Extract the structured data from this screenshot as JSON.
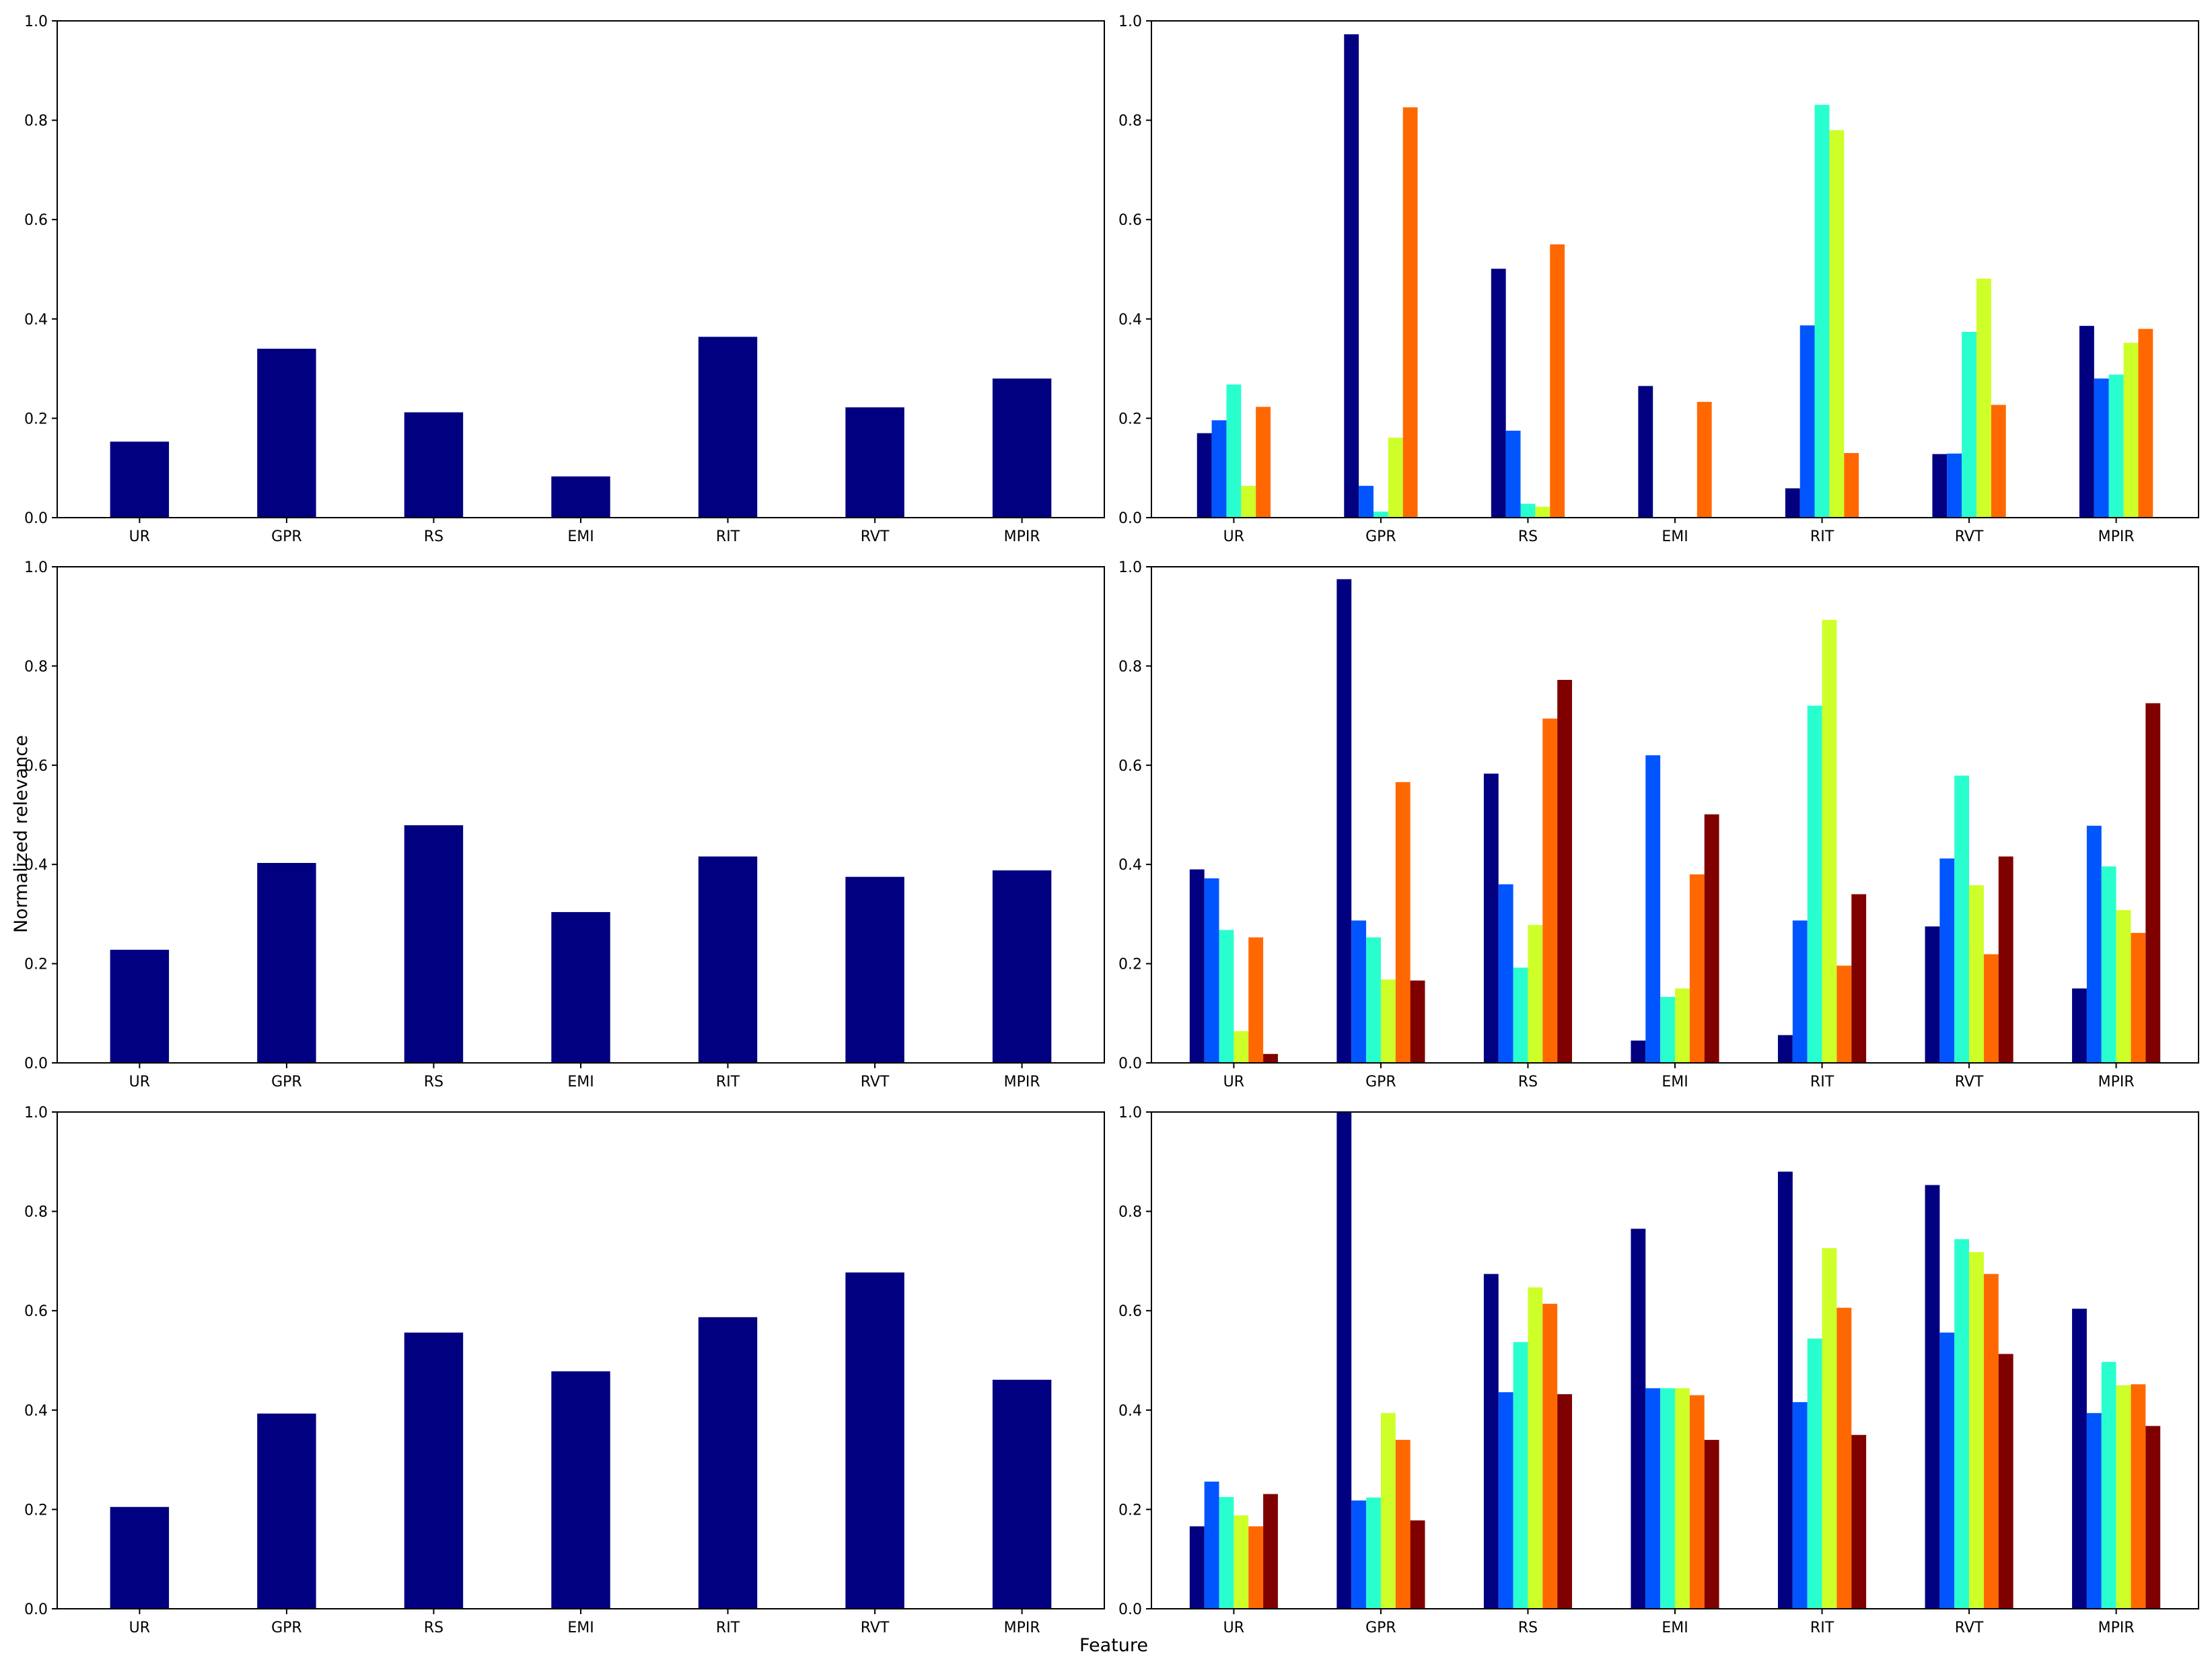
{
  "figure": {
    "xlabel": "Feature",
    "ylabel": "Normalized relevance"
  },
  "colors": {
    "axis": "#000000",
    "palette": [
      "#000080",
      "#0055ff",
      "#29ffce",
      "#ceff29",
      "#ff6800",
      "#800000"
    ]
  },
  "chart_data": [
    {
      "type": "bar",
      "position": "top-left",
      "categories": [
        "UR",
        "GPR",
        "RS",
        "EMI",
        "RIT",
        "RVT",
        "MPIR"
      ],
      "ylim": [
        0,
        1
      ],
      "yticks": [
        "0.0",
        "0.2",
        "0.4",
        "0.6",
        "0.8",
        "1.0"
      ],
      "grid": false,
      "series": [
        {
          "values": [
            0.153,
            0.34,
            0.212,
            0.083,
            0.364,
            0.222,
            0.28
          ]
        }
      ]
    },
    {
      "type": "bar",
      "position": "top-right",
      "categories": [
        "UR",
        "GPR",
        "RS",
        "EMI",
        "RIT",
        "RVT",
        "MPIR"
      ],
      "ylim": [
        0,
        1
      ],
      "yticks": [
        "0.0",
        "0.2",
        "0.4",
        "0.6",
        "0.8",
        "1.0"
      ],
      "grid": false,
      "series": [
        {
          "values": [
            0.17,
            0.973,
            0.501,
            0.265,
            0.059,
            0.128,
            0.386
          ]
        },
        {
          "values": [
            0.196,
            0.064,
            0.175,
            0.0,
            0.387,
            0.129,
            0.28
          ]
        },
        {
          "values": [
            0.268,
            0.012,
            0.028,
            0.0,
            0.831,
            0.374,
            0.288
          ]
        },
        {
          "values": [
            0.064,
            0.161,
            0.022,
            0.0,
            0.78,
            0.481,
            0.352
          ]
        },
        {
          "values": [
            0.223,
            0.826,
            0.55,
            0.233,
            0.13,
            0.227,
            0.38
          ]
        }
      ]
    },
    {
      "type": "bar",
      "position": "middle-left",
      "categories": [
        "UR",
        "GPR",
        "RS",
        "EMI",
        "RIT",
        "RVT",
        "MPIR"
      ],
      "ylim": [
        0,
        1
      ],
      "yticks": [
        "0.0",
        "0.2",
        "0.4",
        "0.6",
        "0.8",
        "1.0"
      ],
      "grid": false,
      "series": [
        {
          "values": [
            0.228,
            0.403,
            0.479,
            0.304,
            0.416,
            0.375,
            0.388
          ]
        }
      ]
    },
    {
      "type": "bar",
      "position": "middle-right",
      "categories": [
        "UR",
        "GPR",
        "RS",
        "EMI",
        "RIT",
        "RVT",
        "MPIR"
      ],
      "ylim": [
        0,
        1
      ],
      "yticks": [
        "0.0",
        "0.2",
        "0.4",
        "0.6",
        "0.8",
        "1.0"
      ],
      "grid": false,
      "series": [
        {
          "values": [
            0.39,
            0.975,
            0.583,
            0.045,
            0.056,
            0.275,
            0.15
          ]
        },
        {
          "values": [
            0.372,
            0.287,
            0.36,
            0.62,
            0.287,
            0.412,
            0.478
          ]
        },
        {
          "values": [
            0.268,
            0.253,
            0.192,
            0.133,
            0.72,
            0.579,
            0.396
          ]
        },
        {
          "values": [
            0.064,
            0.168,
            0.278,
            0.15,
            0.893,
            0.358,
            0.308
          ]
        },
        {
          "values": [
            0.253,
            0.566,
            0.694,
            0.38,
            0.196,
            0.219,
            0.262
          ]
        },
        {
          "values": [
            0.018,
            0.166,
            0.772,
            0.501,
            0.34,
            0.416,
            0.725
          ]
        }
      ]
    },
    {
      "type": "bar",
      "position": "bottom-left",
      "categories": [
        "UR",
        "GPR",
        "RS",
        "EMI",
        "RIT",
        "RVT",
        "MPIR"
      ],
      "ylim": [
        0,
        1
      ],
      "yticks": [
        "0.0",
        "0.2",
        "0.4",
        "0.6",
        "0.8",
        "1.0"
      ],
      "grid": false,
      "series": [
        {
          "values": [
            0.205,
            0.393,
            0.556,
            0.478,
            0.587,
            0.677,
            0.461
          ]
        }
      ]
    },
    {
      "type": "bar",
      "position": "bottom-right",
      "categories": [
        "UR",
        "GPR",
        "RS",
        "EMI",
        "RIT",
        "RVT",
        "MPIR"
      ],
      "ylim": [
        0,
        1
      ],
      "yticks": [
        "0.0",
        "0.2",
        "0.4",
        "0.6",
        "0.8",
        "1.0"
      ],
      "grid": false,
      "series": [
        {
          "values": [
            0.166,
            1.0,
            0.674,
            0.765,
            0.88,
            0.853,
            0.604
          ]
        },
        {
          "values": [
            0.256,
            0.218,
            0.436,
            0.444,
            0.416,
            0.556,
            0.394
          ]
        },
        {
          "values": [
            0.225,
            0.224,
            0.537,
            0.444,
            0.544,
            0.744,
            0.497
          ]
        },
        {
          "values": [
            0.188,
            0.394,
            0.647,
            0.444,
            0.726,
            0.718,
            0.45
          ]
        },
        {
          "values": [
            0.166,
            0.34,
            0.614,
            0.43,
            0.606,
            0.674,
            0.452
          ]
        },
        {
          "values": [
            0.231,
            0.178,
            0.432,
            0.34,
            0.35,
            0.513,
            0.368
          ]
        }
      ]
    }
  ]
}
